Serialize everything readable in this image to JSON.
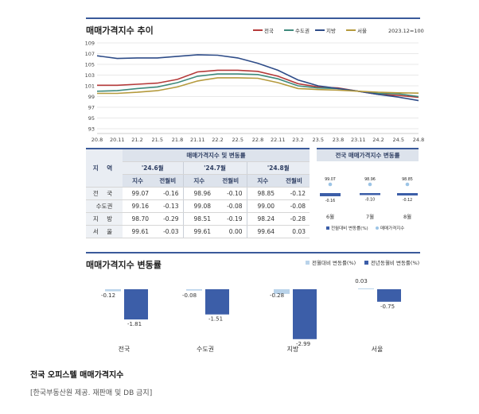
{
  "chart_data": [
    {
      "type": "line",
      "title": "매매가격지수 추이",
      "note": "2023.12=100",
      "x": [
        "20.8",
        "20.11",
        "21.2",
        "21.5",
        "21.8",
        "21.11",
        "22.2",
        "22.5",
        "22.8",
        "22.11",
        "23.2",
        "23.5",
        "23.8",
        "23.11",
        "24.2",
        "24.5",
        "24.8"
      ],
      "ylim": [
        93,
        109
      ],
      "yticks": [
        93,
        95,
        97,
        99,
        101,
        103,
        105,
        107,
        109
      ],
      "series": [
        {
          "name": "전국",
          "color": "#b53a3a",
          "values": [
            101.1,
            101.1,
            101.3,
            101.5,
            102.2,
            103.6,
            103.9,
            103.9,
            103.7,
            102.8,
            101.4,
            100.8,
            100.6,
            100.0,
            99.4,
            99.2,
            98.85
          ]
        },
        {
          "name": "수도권",
          "color": "#3f8a7c",
          "values": [
            100.0,
            100.1,
            100.5,
            100.8,
            101.6,
            102.8,
            103.2,
            103.2,
            103.1,
            102.3,
            101.0,
            100.6,
            100.5,
            100.0,
            99.6,
            99.5,
            99.0
          ]
        },
        {
          "name": "지방",
          "color": "#2e4c88",
          "values": [
            106.6,
            106.1,
            106.2,
            106.2,
            106.5,
            106.8,
            106.7,
            106.2,
            105.2,
            103.9,
            102.1,
            101.0,
            100.5,
            100.0,
            99.4,
            98.9,
            98.24
          ]
        },
        {
          "name": "서울",
          "color": "#b59a3d",
          "values": [
            99.6,
            99.6,
            99.8,
            100.1,
            100.8,
            101.9,
            102.5,
            102.5,
            102.4,
            101.6,
            100.5,
            100.3,
            100.2,
            100.0,
            99.8,
            99.7,
            99.64
          ]
        }
      ]
    },
    {
      "type": "table",
      "title": "매매가격지수 및 변동률",
      "corner": "지 역",
      "months": [
        "'24.6월",
        "'24.7월",
        "'24.8월"
      ],
      "subheaders": [
        "지수",
        "전월비",
        "지수",
        "전월비",
        "지수",
        "전월비"
      ],
      "rows": [
        {
          "region": "전 국",
          "cells": [
            "99.07",
            "-0.16",
            "98.96",
            "-0.10",
            "98.85",
            "-0.12"
          ]
        },
        {
          "region": "수도권",
          "cells": [
            "99.16",
            "-0.13",
            "99.08",
            "-0.08",
            "99.00",
            "-0.08"
          ]
        },
        {
          "region": "지 방",
          "cells": [
            "98.70",
            "-0.29",
            "98.51",
            "-0.19",
            "98.24",
            "-0.28"
          ]
        },
        {
          "region": "서 울",
          "cells": [
            "99.61",
            "-0.03",
            "99.61",
            "0.00",
            "99.64",
            "0.03"
          ]
        }
      ]
    },
    {
      "type": "bar",
      "title": "전국 매매가격지수 변동률",
      "categories": [
        "6월",
        "7월",
        "8월"
      ],
      "index_values": [
        99.07,
        98.96,
        98.85
      ],
      "index_labels": [
        "99.07",
        "98.96",
        "98.85"
      ],
      "change_values": [
        -0.16,
        -0.1,
        -0.12
      ],
      "change_labels": [
        "-0.16",
        "-0.10",
        "-0.12"
      ],
      "legend": [
        "전월대비 변동률(%)",
        "매매가격지수"
      ]
    },
    {
      "type": "bar",
      "title": "매매가격지수 변동률",
      "categories": [
        "전국",
        "수도권",
        "지방",
        "서울"
      ],
      "series": [
        {
          "name": "전월대비 변동률(%)",
          "color": "#b9d3ea",
          "values": [
            -0.12,
            -0.08,
            -0.28,
            0.03
          ],
          "labels": [
            "-0.12",
            "-0.08",
            "-0.28",
            "0.03"
          ]
        },
        {
          "name": "전년동월비 변동률(%)",
          "color": "#3c5ea8",
          "values": [
            -1.81,
            -1.51,
            -2.99,
            -0.75
          ],
          "labels": [
            "-1.81",
            "-1.51",
            "-2.99",
            "-0.75"
          ]
        }
      ]
    }
  ],
  "caption": "전국 오피스텔 매매가격지수",
  "source": "[한국부동산원 제공. 재판매 및 DB 금지]"
}
